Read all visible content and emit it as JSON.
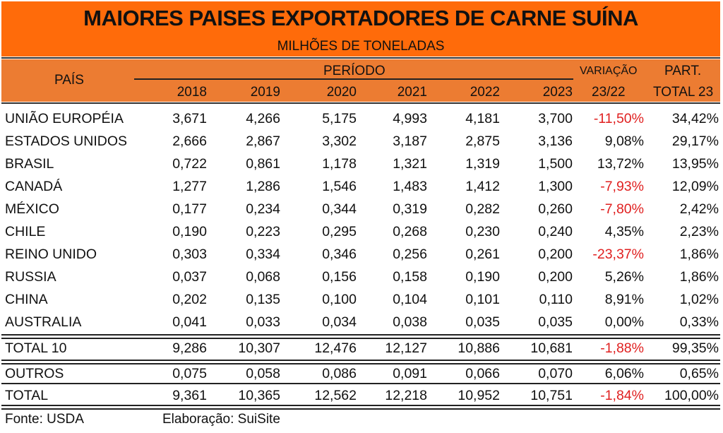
{
  "title": "MAIORES PAISES EXPORTADORES DE CARNE SUÍNA",
  "subtitle": "MILHÕES DE TONELADAS",
  "header": {
    "country": "PAÍS",
    "period": "PERÍODO",
    "variation_top": "VARIAÇÃO",
    "variation_bottom": "23/22",
    "part_top": "PART.",
    "part_bottom": "TOTAL 23",
    "years": [
      "2018",
      "2019",
      "2020",
      "2021",
      "2022",
      "2023"
    ]
  },
  "colors": {
    "title_band": "#FF6B0A",
    "header_band": "#EC7C32",
    "negative": "#E02020"
  },
  "chart_data": {
    "type": "table",
    "title": "MAIORES PAISES EXPORTADORES DE CARNE SUÍNA",
    "subtitle": "MILHÕES DE TONELADAS",
    "columns": [
      "PAÍS",
      "2018",
      "2019",
      "2020",
      "2021",
      "2022",
      "2023",
      "VARIAÇÃO 23/22",
      "PART. TOTAL 23"
    ],
    "rows": [
      {
        "country": "UNIÃO EUROPÉIA",
        "values": [
          "3,671",
          "4,266",
          "5,175",
          "4,993",
          "4,181",
          "3,700"
        ],
        "variation": "-11,50%",
        "share": "34,42%"
      },
      {
        "country": "ESTADOS UNIDOS",
        "values": [
          "2,666",
          "2,867",
          "3,302",
          "3,187",
          "2,875",
          "3,136"
        ],
        "variation": "9,08%",
        "share": "29,17%"
      },
      {
        "country": "BRASIL",
        "values": [
          "0,722",
          "0,861",
          "1,178",
          "1,321",
          "1,319",
          "1,500"
        ],
        "variation": "13,72%",
        "share": "13,95%"
      },
      {
        "country": "CANADÁ",
        "values": [
          "1,277",
          "1,286",
          "1,546",
          "1,483",
          "1,412",
          "1,300"
        ],
        "variation": "-7,93%",
        "share": "12,09%"
      },
      {
        "country": "MÉXICO",
        "values": [
          "0,177",
          "0,234",
          "0,344",
          "0,319",
          "0,282",
          "0,260"
        ],
        "variation": "-7,80%",
        "share": "2,42%"
      },
      {
        "country": "CHILE",
        "values": [
          "0,190",
          "0,223",
          "0,295",
          "0,268",
          "0,230",
          "0,240"
        ],
        "variation": "4,35%",
        "share": "2,23%"
      },
      {
        "country": "REINO UNIDO",
        "values": [
          "0,303",
          "0,334",
          "0,346",
          "0,256",
          "0,261",
          "0,200"
        ],
        "variation": "-23,37%",
        "share": "1,86%"
      },
      {
        "country": "RUSSIA",
        "values": [
          "0,037",
          "0,068",
          "0,156",
          "0,158",
          "0,190",
          "0,200"
        ],
        "variation": "5,26%",
        "share": "1,86%"
      },
      {
        "country": "CHINA",
        "values": [
          "0,202",
          "0,135",
          "0,100",
          "0,104",
          "0,101",
          "0,110"
        ],
        "variation": "8,91%",
        "share": "1,02%"
      },
      {
        "country": "AUSTRALIA",
        "values": [
          "0,041",
          "0,033",
          "0,034",
          "0,038",
          "0,035",
          "0,035"
        ],
        "variation": "0,00%",
        "share": "0,33%"
      },
      {
        "country": "TOTAL 10",
        "values": [
          "9,286",
          "10,307",
          "12,476",
          "12,127",
          "10,886",
          "10,681"
        ],
        "variation": "-1,88%",
        "share": "99,35%"
      },
      {
        "country": "OUTROS",
        "values": [
          "0,075",
          "0,058",
          "0,086",
          "0,091",
          "0,066",
          "0,070"
        ],
        "variation": "6,06%",
        "share": "0,65%"
      },
      {
        "country": "TOTAL",
        "values": [
          "9,361",
          "10,365",
          "12,562",
          "12,218",
          "10,952",
          "10,751"
        ],
        "variation": "-1,84%",
        "share": "100,00%"
      }
    ]
  },
  "footer": {
    "source": "Fonte: USDA",
    "author": "Elaboração: SuiSite"
  }
}
